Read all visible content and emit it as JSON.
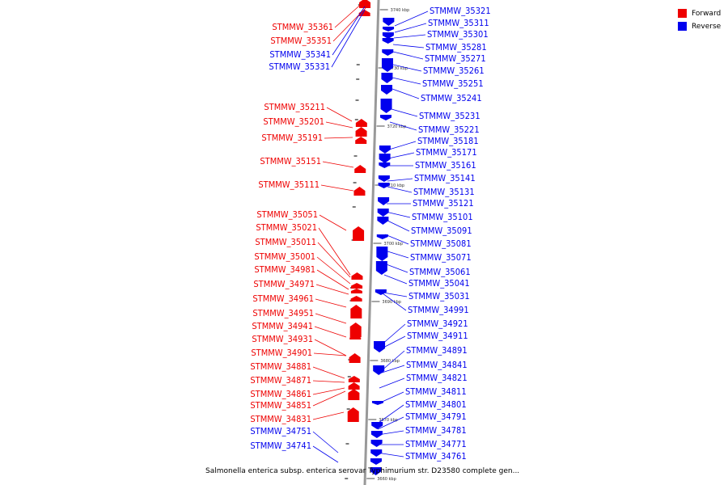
{
  "colors": {
    "forward": "#ee0000",
    "reverse": "#0000ee",
    "axis": "#999999"
  },
  "legend": [
    {
      "label": "Forward",
      "color": "#ee0000"
    },
    {
      "label": "Reverse",
      "color": "#0000ee"
    }
  ],
  "caption": "Salmonella enterica subsp. enterica serovar Typhimurium str. D23580 complete gen...",
  "ticks": [
    "3740 kbp",
    "3730 kbp",
    "3720 kbp",
    "3710 kbp",
    "3700 kbp",
    "3690 kbp",
    "3680 kbp",
    "3670 kbp",
    "3660 kbp"
  ],
  "forward_genes": [
    "STMMW_35361",
    "STMMW_35351",
    "STMMW_35211",
    "STMMW_35201",
    "STMMW_35191",
    "STMMW_35151",
    "STMMW_35111",
    "STMMW_35051",
    "STMMW_35021",
    "STMMW_35011",
    "STMMW_35001",
    "STMMW_34981",
    "STMMW_34971",
    "STMMW_34961",
    "STMMW_34951",
    "STMMW_34941",
    "STMMW_34931",
    "STMMW_34901",
    "STMMW_34881",
    "STMMW_34871",
    "STMMW_34861",
    "STMMW_34851",
    "STMMW_34831"
  ],
  "left_reverse_genes": [
    "STMMW_35341",
    "STMMW_35331",
    "STMMW_34751",
    "STMMW_34741"
  ],
  "reverse_genes": [
    "STMMW_35321",
    "STMMW_35311",
    "STMMW_35301",
    "STMMW_35281",
    "STMMW_35271",
    "STMMW_35261",
    "STMMW_35251",
    "STMMW_35241",
    "STMMW_35231",
    "STMMW_35221",
    "STMMW_35181",
    "STMMW_35171",
    "STMMW_35161",
    "STMMW_35141",
    "STMMW_35131",
    "STMMW_35121",
    "STMMW_35101",
    "STMMW_35091",
    "STMMW_35081",
    "STMMW_35071",
    "STMMW_35061",
    "STMMW_35041",
    "STMMW_35031",
    "STMMW_34991",
    "STMMW_34921",
    "STMMW_34911",
    "STMMW_34891",
    "STMMW_34841",
    "STMMW_34821",
    "STMMW_34811",
    "STMMW_34801",
    "STMMW_34791",
    "STMMW_34781",
    "STMMW_34771",
    "STMMW_34761"
  ]
}
